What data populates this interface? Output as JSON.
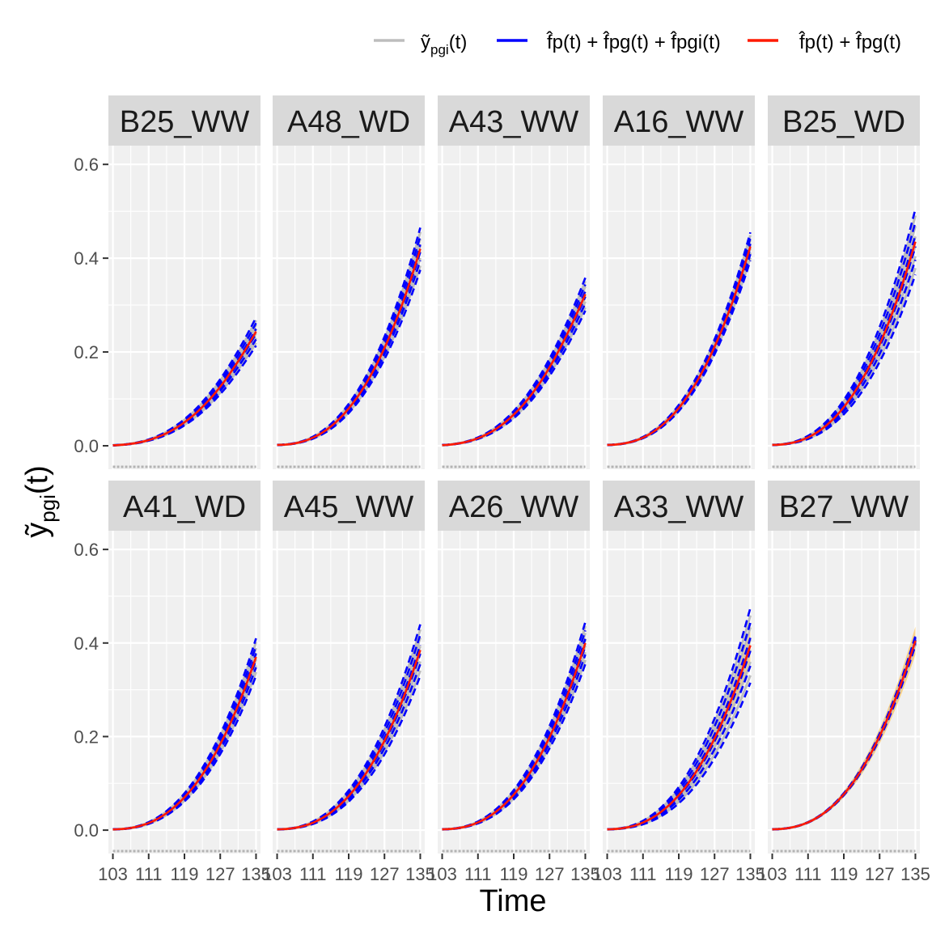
{
  "chart_data": {
    "type": "line",
    "xlabel": "Time",
    "ylabel_main": "ỹ",
    "ylabel_sub": "pgi",
    "ylabel_tail": "(t)",
    "xlim": [
      102,
      136
    ],
    "ylim": [
      -0.05,
      0.64
    ],
    "x_ticks": [
      103,
      111,
      119,
      127,
      135
    ],
    "x_tick_labels": [
      "103",
      "111",
      "119",
      "127",
      "135"
    ],
    "y_ticks": [
      0.0,
      0.2,
      0.4,
      0.6
    ],
    "y_tick_labels": [
      "0.0",
      "0.2",
      "0.4",
      "0.6"
    ],
    "legend": {
      "position": "top-right",
      "entries": [
        {
          "label": "ỹ",
          "sub": "pgi",
          "tail": "(t)",
          "color": "#bdbdbd"
        },
        {
          "label": "f̂p(t) + f̂pg(t) + f̂pgi(t)",
          "color": "#0000ff"
        },
        {
          "label": "f̂p(t) + f̂pg(t)",
          "color": "#ff1a00"
        }
      ]
    },
    "panels": [
      {
        "name": "B25_WW",
        "final": 0.245,
        "spread": 0.03,
        "band": 0.025,
        "kink": true
      },
      {
        "name": "A48_WD",
        "final": 0.42,
        "spread": 0.045,
        "band": 0.012,
        "kink": false
      },
      {
        "name": "A43_WW",
        "final": 0.325,
        "spread": 0.035,
        "band": 0.03,
        "kink": true
      },
      {
        "name": "A16_WW",
        "final": 0.425,
        "spread": 0.03,
        "band": 0.01,
        "kink": false
      },
      {
        "name": "B25_WD",
        "final": 0.435,
        "spread": 0.07,
        "band": 0.015,
        "kink": false
      },
      {
        "name": "A41_WD",
        "final": 0.37,
        "spread": 0.04,
        "band": 0.012,
        "kink": false
      },
      {
        "name": "A45_WW",
        "final": 0.385,
        "spread": 0.055,
        "band": 0.012,
        "kink": false
      },
      {
        "name": "A26_WW",
        "final": 0.4,
        "spread": 0.045,
        "band": 0.015,
        "kink": false
      },
      {
        "name": "A33_WW",
        "final": 0.395,
        "spread": 0.08,
        "band": 0.045,
        "kink": false
      },
      {
        "name": "B27_WW",
        "final": 0.405,
        "spread": 0.01,
        "band": 0.03,
        "kink": false
      }
    ]
  }
}
